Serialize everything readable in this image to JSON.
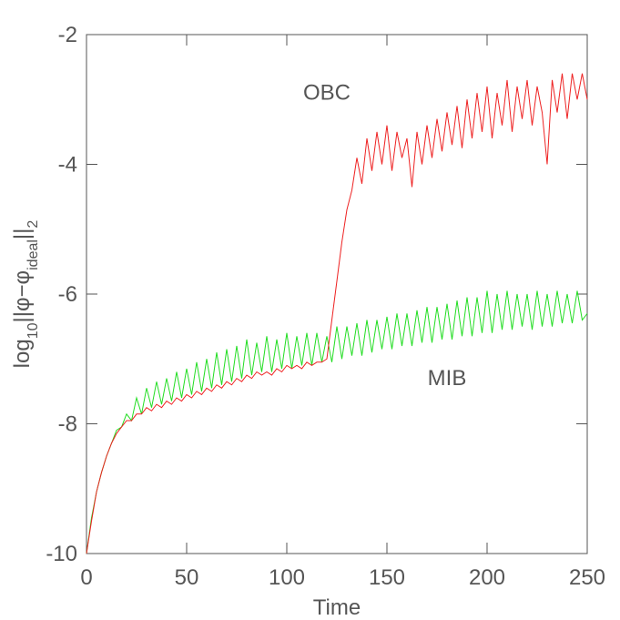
{
  "chart_data": {
    "type": "line",
    "xlabel": "Time",
    "ylabel": [
      "log",
      "10",
      "||φ−φ",
      "ideal",
      "||",
      "2"
    ],
    "annotations": [
      {
        "text": "OBC",
        "x": 120,
        "y": -3.0
      },
      {
        "text": "MIB",
        "x": 180,
        "y": -7.4
      }
    ],
    "xlim": [
      0,
      250
    ],
    "xticks": [
      0,
      50,
      100,
      150,
      200,
      250
    ],
    "ylim": [
      -10,
      -2
    ],
    "yticks": [
      -10,
      -8,
      -6,
      -4,
      -2
    ],
    "x": [
      0,
      2.5,
      5,
      7.5,
      10,
      12.5,
      15,
      17.5,
      20,
      22.5,
      25,
      27.5,
      30,
      32.5,
      35,
      37.5,
      40,
      42.5,
      45,
      47.5,
      50,
      52.5,
      55,
      57.5,
      60,
      62.5,
      65,
      67.5,
      70,
      72.5,
      75,
      77.5,
      80,
      82.5,
      85,
      87.5,
      90,
      92.5,
      95,
      97.5,
      100,
      102.5,
      105,
      107.5,
      110,
      112.5,
      115,
      117.5,
      120,
      122.5,
      125,
      127.5,
      130,
      132.5,
      135,
      137.5,
      140,
      142.5,
      145,
      147.5,
      150,
      152.5,
      155,
      157.5,
      160,
      162.5,
      165,
      167.5,
      170,
      172.5,
      175,
      177.5,
      180,
      182.5,
      185,
      187.5,
      190,
      192.5,
      195,
      197.5,
      200,
      202.5,
      205,
      207.5,
      210,
      212.5,
      215,
      217.5,
      220,
      222.5,
      225,
      227.5,
      230,
      232.5,
      235,
      237.5,
      240,
      242.5,
      245,
      247.5,
      250
    ],
    "series": [
      {
        "name": "MIB",
        "color": "#22dd22",
        "values": [
          -10,
          -9.45,
          -9.05,
          -8.75,
          -8.5,
          -8.3,
          -8.1,
          -8.05,
          -7.85,
          -7.95,
          -7.6,
          -7.85,
          -7.45,
          -7.75,
          -7.35,
          -7.7,
          -7.3,
          -7.65,
          -7.2,
          -7.6,
          -7.15,
          -7.55,
          -7.05,
          -7.5,
          -7.0,
          -7.45,
          -6.9,
          -7.4,
          -6.85,
          -7.35,
          -6.8,
          -7.3,
          -6.7,
          -7.25,
          -6.75,
          -7.2,
          -6.65,
          -7.2,
          -6.7,
          -7.15,
          -6.6,
          -7.15,
          -6.65,
          -7.1,
          -6.6,
          -7.1,
          -6.6,
          -7.05,
          -6.65,
          -7.05,
          -6.5,
          -7.0,
          -6.5,
          -6.95,
          -6.45,
          -6.95,
          -6.4,
          -6.9,
          -6.4,
          -6.85,
          -6.35,
          -6.85,
          -6.3,
          -6.8,
          -6.3,
          -6.8,
          -6.25,
          -6.75,
          -6.2,
          -6.75,
          -6.2,
          -6.7,
          -6.15,
          -6.7,
          -6.1,
          -6.65,
          -6.05,
          -6.65,
          -6.05,
          -6.6,
          -5.95,
          -6.6,
          -6.0,
          -6.55,
          -5.95,
          -6.55,
          -6.0,
          -6.5,
          -6.0,
          -6.55,
          -5.95,
          -6.5,
          -6.0,
          -6.5,
          -5.95,
          -6.45,
          -6.0,
          -6.45,
          -5.95,
          -6.4,
          -6.3
        ]
      },
      {
        "name": "OBC",
        "color": "#ee2222",
        "values": [
          -10,
          -9.5,
          -9.05,
          -8.75,
          -8.5,
          -8.3,
          -8.15,
          -8.05,
          -7.95,
          -7.95,
          -7.85,
          -7.85,
          -7.75,
          -7.8,
          -7.7,
          -7.75,
          -7.65,
          -7.7,
          -7.6,
          -7.65,
          -7.55,
          -7.6,
          -7.5,
          -7.55,
          -7.45,
          -7.5,
          -7.4,
          -7.45,
          -7.35,
          -7.4,
          -7.3,
          -7.35,
          -7.25,
          -7.3,
          -7.2,
          -7.25,
          -7.2,
          -7.25,
          -7.15,
          -7.2,
          -7.1,
          -7.15,
          -7.1,
          -7.15,
          -7.05,
          -7.1,
          -7.05,
          -7.05,
          -7.0,
          -6.4,
          -5.8,
          -5.2,
          -4.7,
          -4.4,
          -3.9,
          -4.3,
          -3.6,
          -4.1,
          -3.5,
          -4.0,
          -3.4,
          -4.1,
          -3.5,
          -3.9,
          -3.6,
          -4.35,
          -3.5,
          -4.0,
          -3.4,
          -3.9,
          -3.3,
          -3.8,
          -3.2,
          -3.7,
          -3.1,
          -3.75,
          -3.0,
          -3.6,
          -2.9,
          -3.5,
          -2.8,
          -3.6,
          -2.9,
          -3.4,
          -2.7,
          -3.5,
          -2.8,
          -3.3,
          -2.7,
          -3.4,
          -2.8,
          -3.2,
          -4.0,
          -2.7,
          -3.2,
          -2.6,
          -3.3,
          -2.6,
          -3.0,
          -2.6,
          -3.0
        ]
      }
    ]
  }
}
